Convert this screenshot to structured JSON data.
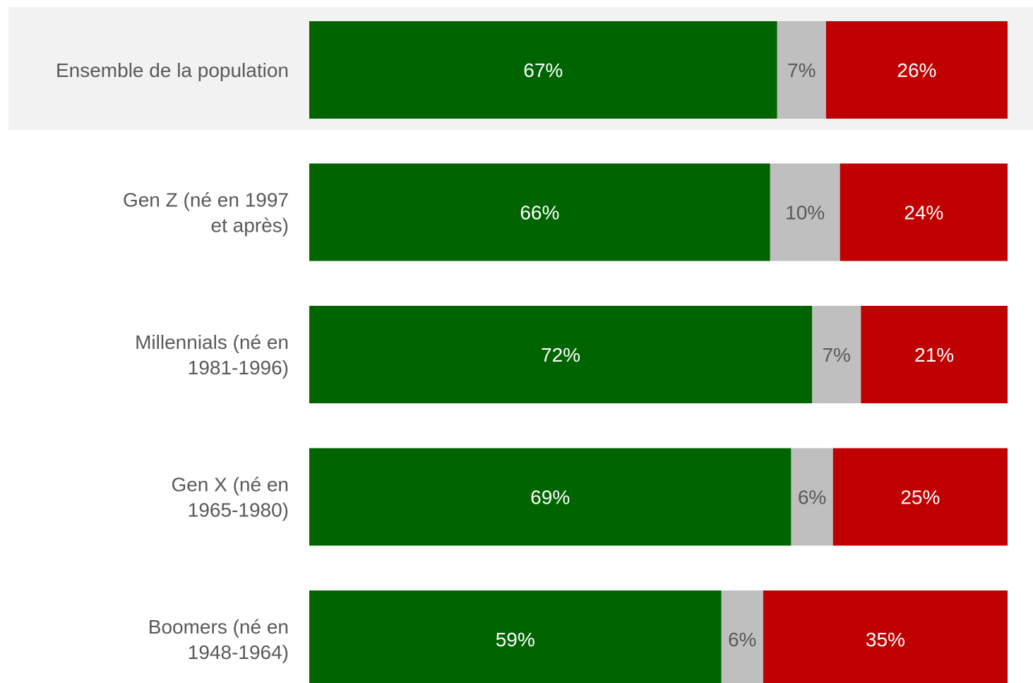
{
  "chart_data": {
    "type": "bar",
    "orientation": "horizontal",
    "stacked": true,
    "normalized": true,
    "categories": [
      [
        "Ensemble de la population"
      ],
      [
        "Gen Z (né en 1997",
        "et après)"
      ],
      [
        "Millennials (né en",
        "1981-1996)"
      ],
      [
        "Gen X (né en",
        "1965-1980)"
      ],
      [
        "Boomers (né en",
        "1948-1964)"
      ]
    ],
    "highlighted_category_index": 0,
    "series": [
      {
        "values": [
          67,
          66,
          72,
          69,
          59
        ],
        "color": "#006400",
        "label_color": "#ffffff"
      },
      {
        "values": [
          7,
          10,
          7,
          6,
          6
        ],
        "color": "#bfbfbf",
        "label_color": "#595959"
      },
      {
        "values": [
          26,
          24,
          21,
          25,
          35
        ],
        "color": "#c00000",
        "label_color": "#ffffff"
      }
    ],
    "value_suffix": "%",
    "xlim": [
      0,
      100
    ],
    "grid": false,
    "legend": "none",
    "colors": {
      "highlight_band": "#f2f2f2",
      "category_text": "#595959"
    }
  }
}
